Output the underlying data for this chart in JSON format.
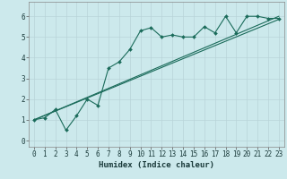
{
  "xlabel": "Humidex (Indice chaleur)",
  "ylabel": "",
  "background_color": "#cce9ec",
  "line_color": "#1a6b5a",
  "grid_color": "#b8d4d8",
  "xlim": [
    -0.5,
    23.5
  ],
  "ylim": [
    -0.3,
    6.7
  ],
  "xticks": [
    0,
    1,
    2,
    3,
    4,
    5,
    6,
    7,
    8,
    9,
    10,
    11,
    12,
    13,
    14,
    15,
    16,
    17,
    18,
    19,
    20,
    21,
    22,
    23
  ],
  "yticks": [
    0,
    1,
    2,
    3,
    4,
    5,
    6
  ],
  "series": [
    {
      "x": [
        0,
        1,
        2,
        3,
        4,
        5,
        6,
        7,
        8,
        9,
        10,
        11,
        12,
        13,
        14,
        15,
        16,
        17,
        18,
        19,
        20,
        21,
        22,
        23
      ],
      "y": [
        1.0,
        1.1,
        1.5,
        0.5,
        1.2,
        2.0,
        1.7,
        3.5,
        3.8,
        4.4,
        5.3,
        5.45,
        5.0,
        5.1,
        5.0,
        5.0,
        5.5,
        5.2,
        6.0,
        5.2,
        6.0,
        6.0,
        5.9,
        5.9
      ]
    },
    {
      "x": [
        0,
        23
      ],
      "y": [
        1.0,
        6.0
      ]
    },
    {
      "x": [
        0,
        23
      ],
      "y": [
        1.0,
        5.85
      ]
    }
  ]
}
